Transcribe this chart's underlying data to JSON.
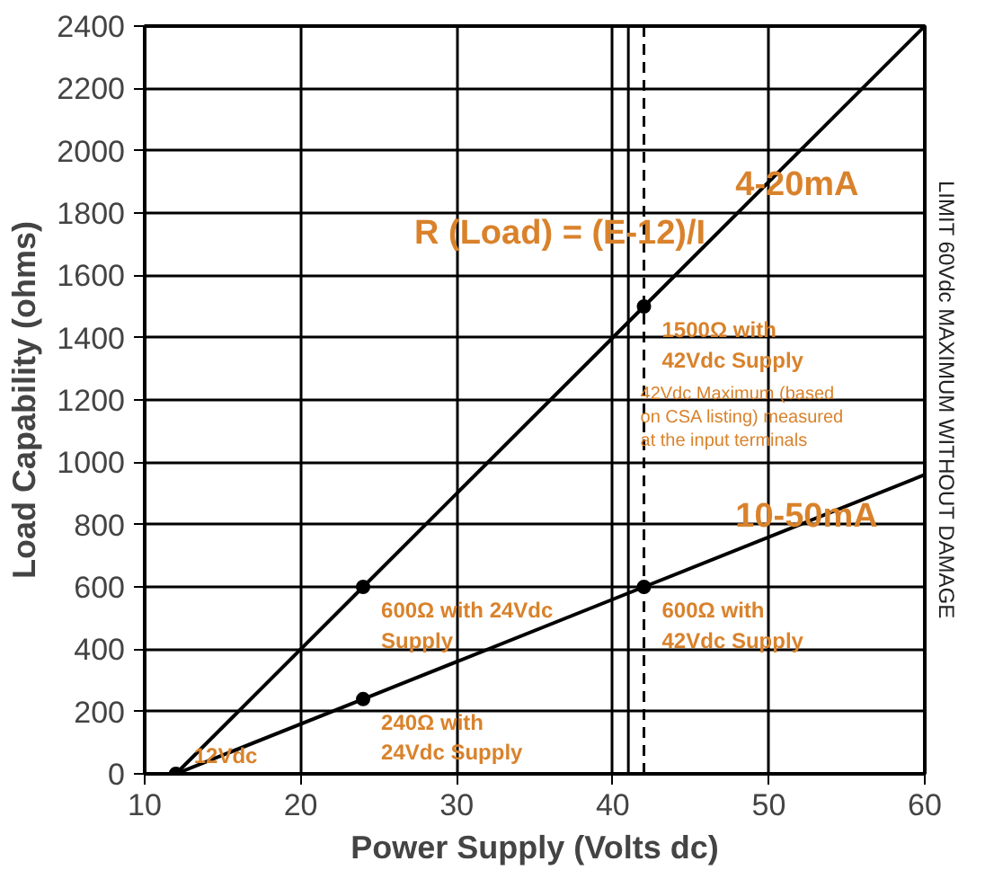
{
  "chart_data": {
    "type": "line",
    "xlabel": "Power Supply (Volts dc)",
    "ylabel": "Load Capability (ohms)",
    "xlim": [
      10,
      60
    ],
    "ylim": [
      0,
      2400
    ],
    "xticks": [
      10,
      20,
      30,
      40,
      50,
      60
    ],
    "yticks": [
      0,
      200,
      400,
      600,
      800,
      1000,
      1200,
      1400,
      1600,
      1800,
      2000,
      2200,
      2400
    ],
    "grid": true,
    "legend": false,
    "series": [
      {
        "name": "4-20mA",
        "color": "#000000",
        "x": [
          12,
          24,
          42,
          60
        ],
        "values": [
          0,
          600,
          1500,
          2400
        ]
      },
      {
        "name": "10-50mA",
        "color": "#000000",
        "x": [
          12,
          24,
          42,
          60
        ],
        "values": [
          0,
          240,
          600,
          960
        ]
      },
      {
        "type": "scatter",
        "color": "#000000",
        "marker": "circle",
        "x": [
          12,
          24,
          42,
          24,
          42
        ],
        "values": [
          0,
          600,
          1500,
          240,
          600
        ]
      }
    ],
    "ref_lines": [
      {
        "axis": "x",
        "value": 41,
        "line_style": "solid",
        "color": "#000000"
      },
      {
        "axis": "x",
        "value": 42,
        "line_style": "dashed",
        "color": "#000000",
        "label": "42Vdc Maximum (based\non CSA listing) measured\nat the input terminals"
      }
    ],
    "annotations": [
      "R (Load) = (E-12)/I",
      "LIMIT 60Vdc MAXIMUM WITHOUT DAMAGE",
      {
        "text": "1500Ω with\n42Vdc Supply",
        "x": 42,
        "y": 1500
      },
      {
        "text": "600Ω with 24Vdc\nSupply",
        "x": 24,
        "y": 600
      },
      {
        "text": "240Ω with\n24Vdc Supply",
        "x": 24,
        "y": 240
      },
      {
        "text": "600Ω with\n42Vdc Supply",
        "x": 42,
        "y": 600
      },
      {
        "text": "12Vdc",
        "x": 12,
        "y": 0
      }
    ]
  }
}
